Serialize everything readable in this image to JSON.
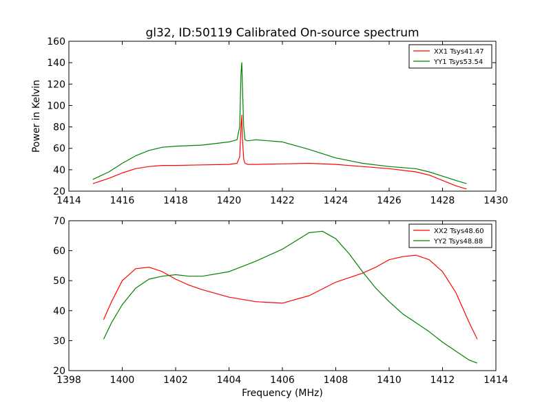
{
  "title": "gl32, ID:50119 Calibrated On-source spectrum",
  "chart_data": [
    {
      "type": "line",
      "ylabel": "Power in Kelvin",
      "xlabel": "",
      "xlim": [
        1414,
        1430
      ],
      "ylim": [
        20,
        160
      ],
      "x_ticks": [
        1414,
        1416,
        1418,
        1420,
        1422,
        1424,
        1426,
        1428,
        1430
      ],
      "y_ticks": [
        20,
        40,
        60,
        80,
        100,
        120,
        140,
        160
      ],
      "legend_position": "top-right",
      "series": [
        {
          "name": "XX1 Tsys41.47",
          "color": "#ff0000",
          "x": [
            1414.9,
            1415.5,
            1416.0,
            1416.5,
            1417.0,
            1417.5,
            1418.0,
            1419.0,
            1420.0,
            1420.3,
            1420.4,
            1420.45,
            1420.48,
            1420.5,
            1420.55,
            1420.6,
            1420.7,
            1421.0,
            1422.0,
            1423.0,
            1424.0,
            1425.0,
            1426.0,
            1427.0,
            1427.5,
            1428.0,
            1428.5,
            1428.9
          ],
          "y": [
            27,
            32,
            37,
            41,
            43,
            44,
            44,
            44.5,
            45,
            46,
            52,
            80,
            91,
            70,
            50,
            46,
            45,
            45,
            45.5,
            46,
            45,
            43,
            41,
            38,
            35,
            30,
            25,
            22
          ]
        },
        {
          "name": "YY1 Tsys53.54",
          "color": "#008000",
          "x": [
            1414.9,
            1415.5,
            1416.0,
            1416.5,
            1417.0,
            1417.5,
            1418.0,
            1419.0,
            1420.0,
            1420.3,
            1420.4,
            1420.45,
            1420.48,
            1420.5,
            1420.55,
            1420.6,
            1420.7,
            1421.0,
            1422.0,
            1423.0,
            1424.0,
            1425.0,
            1426.0,
            1427.0,
            1427.5,
            1428.0,
            1428.5,
            1428.9
          ],
          "y": [
            31,
            38,
            46,
            53,
            58,
            61,
            62,
            63,
            66,
            68,
            80,
            130,
            140,
            120,
            80,
            68,
            67,
            68,
            66,
            59,
            51,
            46,
            43,
            41,
            38,
            34,
            30,
            27
          ]
        }
      ]
    },
    {
      "type": "line",
      "ylabel": "",
      "xlabel": "Frequency (MHz)",
      "xlim": [
        1398,
        1414
      ],
      "ylim": [
        20,
        70
      ],
      "x_ticks": [
        1398,
        1400,
        1402,
        1404,
        1406,
        1408,
        1410,
        1412,
        1414
      ],
      "y_ticks": [
        20,
        30,
        40,
        50,
        60,
        70
      ],
      "legend_position": "top-right",
      "series": [
        {
          "name": "XX2 Tsys48.60",
          "color": "#ff0000",
          "x": [
            1399.3,
            1399.6,
            1400.0,
            1400.5,
            1401.0,
            1401.5,
            1402.0,
            1402.5,
            1403.0,
            1404.0,
            1405.0,
            1406.0,
            1407.0,
            1408.0,
            1409.0,
            1409.5,
            1410.0,
            1410.5,
            1411.0,
            1411.5,
            1412.0,
            1412.5,
            1413.0,
            1413.3
          ],
          "y": [
            37,
            43,
            50,
            54,
            54.5,
            53,
            50.5,
            48.5,
            47,
            44.5,
            43,
            42.5,
            45,
            49.5,
            52.5,
            54.5,
            57,
            58,
            58.5,
            57,
            53,
            46,
            36,
            30.5
          ]
        },
        {
          "name": "YY2 Tsys48.88",
          "color": "#008000",
          "x": [
            1399.3,
            1399.6,
            1400.0,
            1400.5,
            1401.0,
            1401.5,
            1402.0,
            1402.5,
            1403.0,
            1404.0,
            1405.0,
            1406.0,
            1407.0,
            1407.5,
            1408.0,
            1408.5,
            1409.0,
            1409.5,
            1410.0,
            1410.5,
            1411.0,
            1411.5,
            1412.0,
            1412.5,
            1413.0,
            1413.3
          ],
          "y": [
            30.5,
            36,
            42,
            47.5,
            50.5,
            51.5,
            52,
            51.5,
            51.5,
            53,
            56.5,
            60.5,
            66,
            66.5,
            64,
            59,
            53,
            47.5,
            43,
            39,
            36,
            33,
            29.5,
            26.5,
            23.5,
            22.5
          ]
        }
      ]
    }
  ]
}
